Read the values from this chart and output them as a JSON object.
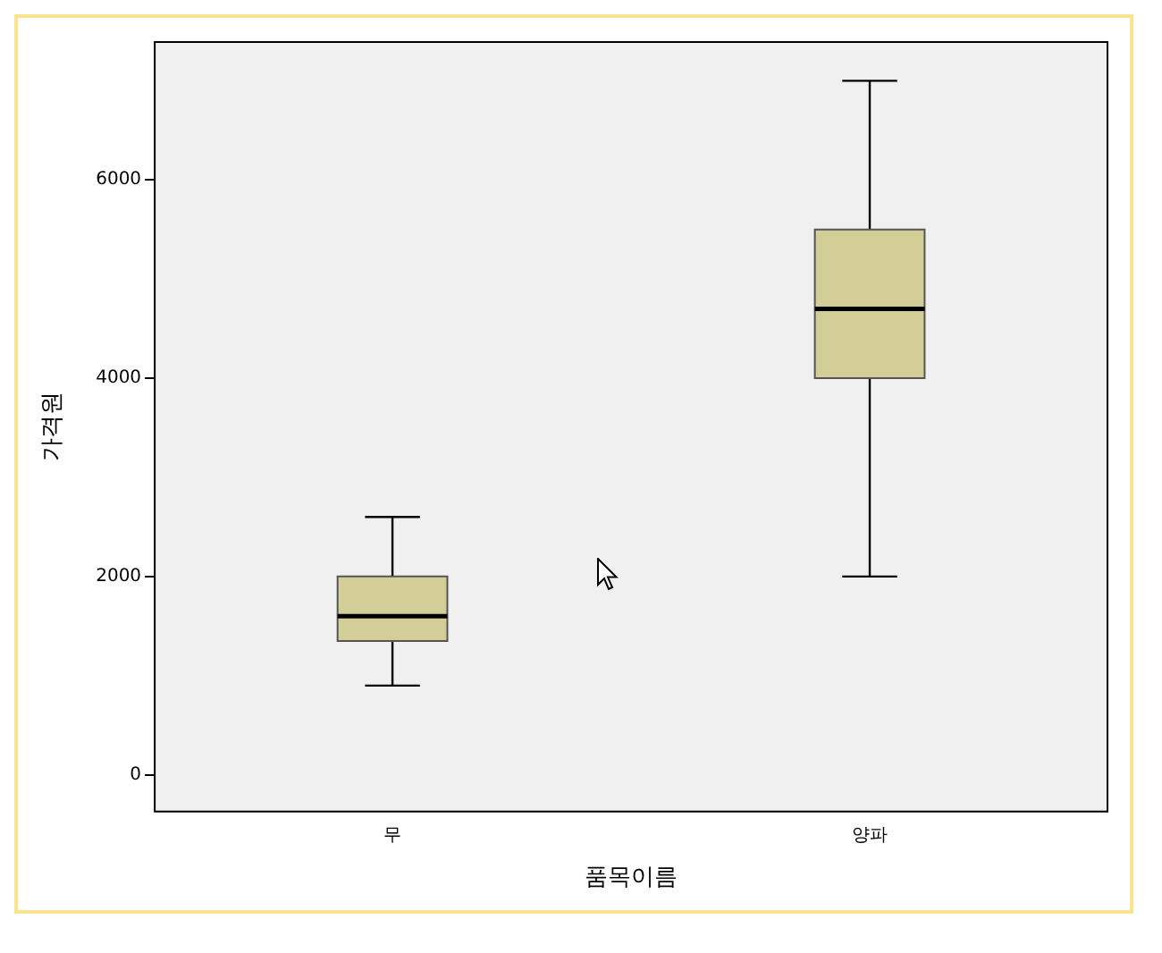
{
  "chart_data": {
    "type": "box",
    "xlabel": "품목이름",
    "ylabel": "가격원",
    "categories": [
      "무",
      "양파"
    ],
    "series": [
      {
        "color": "#d3ce97",
        "boxes": [
          {
            "low": 900,
            "q1": 1350,
            "median": 1600,
            "q3": 2000,
            "high": 2600
          },
          {
            "low": 2000,
            "q1": 4000,
            "median": 4700,
            "q3": 5500,
            "high": 7000
          }
        ]
      }
    ],
    "ylim": [
      -380,
      7400
    ],
    "yticks": [
      0,
      2000,
      4000,
      6000
    ],
    "legend": false
  }
}
